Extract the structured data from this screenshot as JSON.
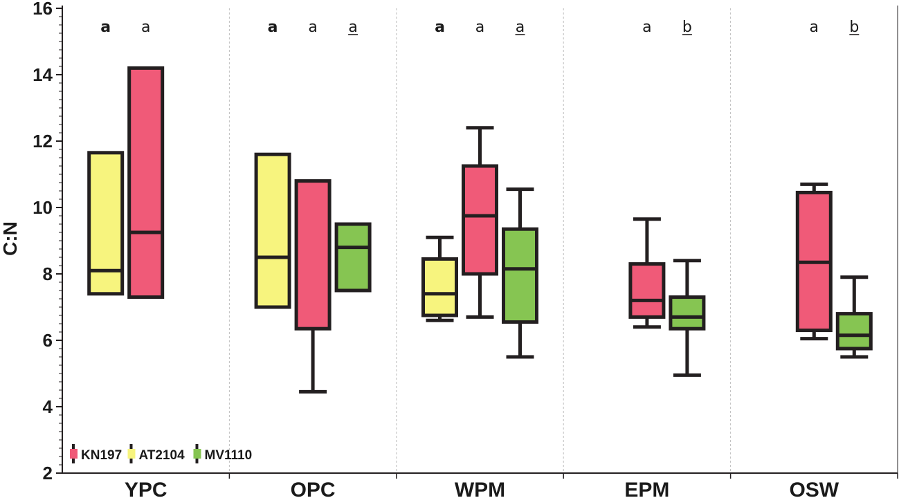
{
  "chart_data": {
    "type": "box",
    "ylabel": "C:N",
    "xlabel": "",
    "ylim": [
      2,
      16
    ],
    "yticks": [
      "2",
      "4",
      "6",
      "8",
      "10",
      "12",
      "14",
      "16"
    ],
    "grid": "vertical dotted separators between groups",
    "legend_position": "bottom-left",
    "colors": {
      "KN197": "#f05a78",
      "AT2104": "#f7f47e",
      "MV1110": "#86c552",
      "stroke": "#231f20"
    },
    "series_names": [
      "KN197",
      "AT2104",
      "MV1110"
    ],
    "groups": [
      {
        "name": "YPC",
        "boxes": [
          {
            "series": "AT2104",
            "min": 7.4,
            "q1": 7.4,
            "median": 8.1,
            "q3": 11.65,
            "max": 11.65,
            "letter": "a",
            "style": "bold"
          },
          {
            "series": "KN197",
            "min": 7.3,
            "q1": 7.3,
            "median": 9.25,
            "q3": 14.2,
            "max": 14.2,
            "letter": "a",
            "style": "normal"
          }
        ]
      },
      {
        "name": "OPC",
        "boxes": [
          {
            "series": "AT2104",
            "min": 7.0,
            "q1": 7.0,
            "median": 8.5,
            "q3": 11.6,
            "max": 11.6,
            "letter": "a",
            "style": "bold"
          },
          {
            "series": "KN197",
            "min": 4.45,
            "q1": 6.35,
            "median": 6.35,
            "q3": 10.8,
            "max": 10.8,
            "letter": "a",
            "style": "normal"
          },
          {
            "series": "MV1110",
            "min": 7.5,
            "q1": 7.5,
            "median": 8.8,
            "q3": 9.5,
            "max": 9.5,
            "letter": "a",
            "style": "underline"
          }
        ]
      },
      {
        "name": "WPM",
        "boxes": [
          {
            "series": "AT2104",
            "min": 6.6,
            "q1": 6.75,
            "median": 7.4,
            "q3": 8.45,
            "max": 9.1,
            "letter": "a",
            "style": "bold"
          },
          {
            "series": "KN197",
            "min": 6.7,
            "q1": 8.0,
            "median": 9.75,
            "q3": 11.25,
            "max": 12.4,
            "letter": "a",
            "style": "normal"
          },
          {
            "series": "MV1110",
            "min": 5.5,
            "q1": 6.55,
            "median": 8.15,
            "q3": 9.35,
            "max": 10.55,
            "letter": "a",
            "style": "underline"
          }
        ]
      },
      {
        "name": "EPM",
        "boxes": [
          {
            "series": "KN197",
            "min": 6.4,
            "q1": 6.7,
            "median": 7.2,
            "q3": 8.3,
            "max": 9.65,
            "letter": "a",
            "style": "normal"
          },
          {
            "series": "MV1110",
            "min": 4.95,
            "q1": 6.35,
            "median": 6.7,
            "q3": 7.3,
            "max": 8.4,
            "letter": "b",
            "style": "underline"
          }
        ]
      },
      {
        "name": "OSW",
        "boxes": [
          {
            "series": "KN197",
            "min": 6.05,
            "q1": 6.3,
            "median": 8.35,
            "q3": 10.45,
            "max": 10.7,
            "letter": "a",
            "style": "normal"
          },
          {
            "series": "MV1110",
            "min": 5.5,
            "q1": 5.75,
            "median": 6.15,
            "q3": 6.8,
            "max": 7.9,
            "letter": "b",
            "style": "underline"
          }
        ]
      }
    ]
  }
}
